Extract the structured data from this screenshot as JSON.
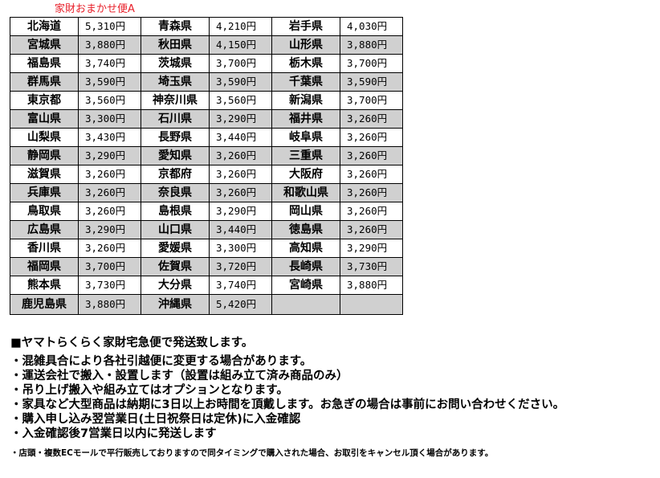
{
  "title": "家財おまかせ便A",
  "rows": [
    [
      [
        "北海道",
        "5,310円"
      ],
      [
        "青森県",
        "4,210円"
      ],
      [
        "岩手県",
        "4,030円"
      ]
    ],
    [
      [
        "宮城県",
        "3,880円"
      ],
      [
        "秋田県",
        "4,150円"
      ],
      [
        "山形県",
        "3,880円"
      ]
    ],
    [
      [
        "福島県",
        "3,740円"
      ],
      [
        "茨城県",
        "3,700円"
      ],
      [
        "栃木県",
        "3,700円"
      ]
    ],
    [
      [
        "群馬県",
        "3,590円"
      ],
      [
        "埼玉県",
        "3,590円"
      ],
      [
        "千葉県",
        "3,590円"
      ]
    ],
    [
      [
        "東京都",
        "3,560円"
      ],
      [
        "神奈川県",
        "3,560円"
      ],
      [
        "新潟県",
        "3,700円"
      ]
    ],
    [
      [
        "富山県",
        "3,300円"
      ],
      [
        "石川県",
        "3,290円"
      ],
      [
        "福井県",
        "3,260円"
      ]
    ],
    [
      [
        "山梨県",
        "3,430円"
      ],
      [
        "長野県",
        "3,440円"
      ],
      [
        "岐阜県",
        "3,260円"
      ]
    ],
    [
      [
        "静岡県",
        "3,290円"
      ],
      [
        "愛知県",
        "3,260円"
      ],
      [
        "三重県",
        "3,260円"
      ]
    ],
    [
      [
        "滋賀県",
        "3,260円"
      ],
      [
        "京都府",
        "3,260円"
      ],
      [
        "大阪府",
        "3,260円"
      ]
    ],
    [
      [
        "兵庫県",
        "3,260円"
      ],
      [
        "奈良県",
        "3,260円"
      ],
      [
        "和歌山県",
        "3,260円"
      ]
    ],
    [
      [
        "鳥取県",
        "3,260円"
      ],
      [
        "島根県",
        "3,290円"
      ],
      [
        "岡山県",
        "3,260円"
      ]
    ],
    [
      [
        "広島県",
        "3,290円"
      ],
      [
        "山口県",
        "3,440円"
      ],
      [
        "徳島県",
        "3,260円"
      ]
    ],
    [
      [
        "香川県",
        "3,260円"
      ],
      [
        "愛媛県",
        "3,300円"
      ],
      [
        "高知県",
        "3,290円"
      ]
    ],
    [
      [
        "福岡県",
        "3,700円"
      ],
      [
        "佐賀県",
        "3,720円"
      ],
      [
        "長崎県",
        "3,730円"
      ]
    ],
    [
      [
        "熊本県",
        "3,730円"
      ],
      [
        "大分県",
        "3,740円"
      ],
      [
        "宮崎県",
        "3,880円"
      ]
    ],
    [
      [
        "鹿児島県",
        "3,880円"
      ],
      [
        "沖縄県",
        "5,420円"
      ],
      [
        "",
        ""
      ]
    ]
  ],
  "notes": {
    "heading": "■ヤマトらくらく家財宅急便で発送致します。",
    "bullets": [
      "・混雑具合により各社引越便に変更する場合があります。",
      "・運送会社で搬入・設置します（設置は組み立て済み商品のみ）",
      "・吊り上げ搬入や組み立てはオプションとなります。",
      "・家具など大型商品は納期に3日以上お時間を頂戴します。お急ぎの場合は事前にお問い合わせください。",
      "・購入申し込み翌営業日(土日祝祭日は定休)に入金確認",
      "・入金確認後7営業日以内に発送します"
    ],
    "footnote": "・店頭・複数ECモールで平行販売しておりますので同タイミングで購入された場合、お取引をキャンセル頂く場合があります。"
  },
  "colors": {
    "title": "#e8202a",
    "alt_row": "#d0d0d0"
  }
}
